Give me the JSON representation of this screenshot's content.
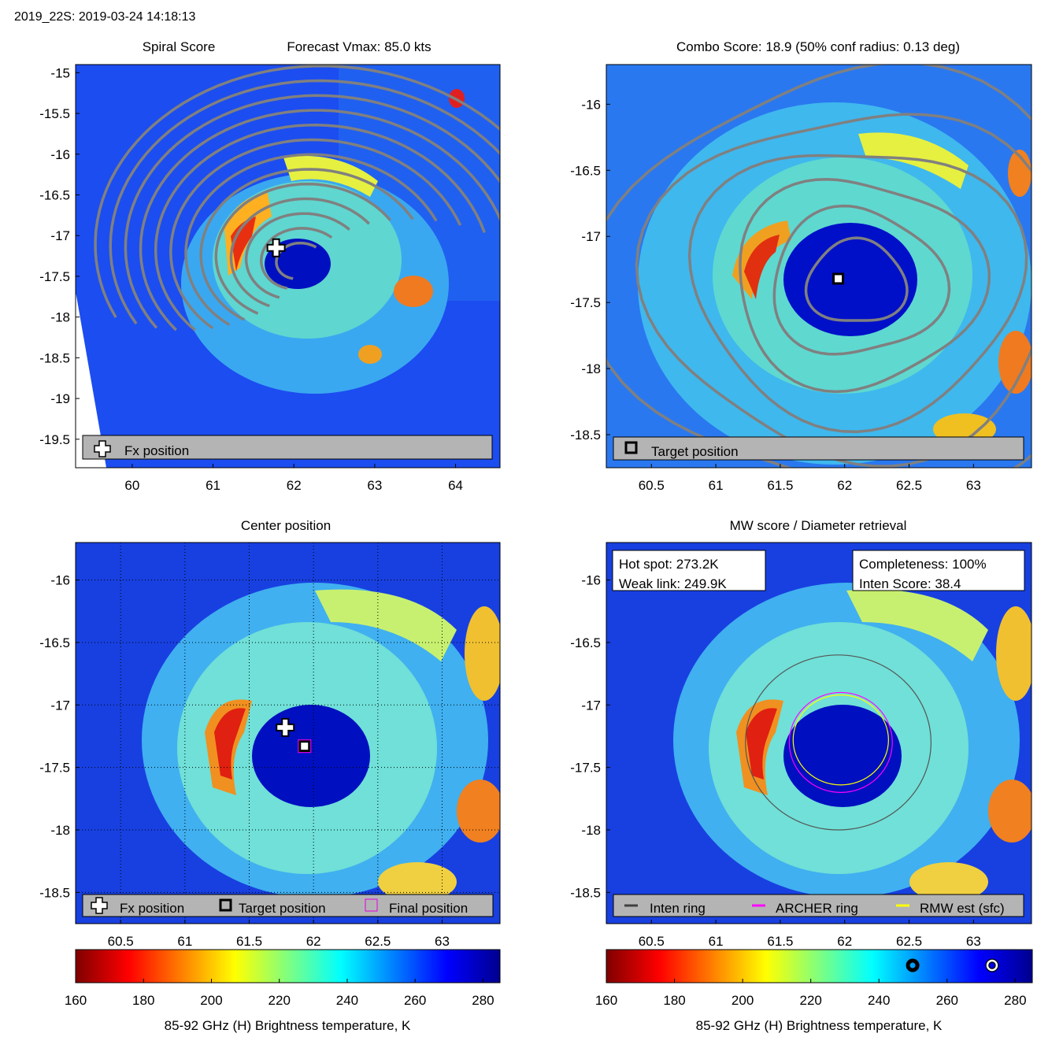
{
  "header": {
    "storm_time": "2019_22S: 2019-03-24 14:18:13"
  },
  "chart_data": [
    {
      "type": "heatmap",
      "panel": "spiral-score",
      "title": "Spiral Score",
      "subtitle": "Forecast Vmax: 85.0 kts",
      "xlim": [
        59.3,
        64.55
      ],
      "ylim": [
        -19.85,
        -14.9
      ],
      "xticks": [
        60,
        61,
        62,
        63,
        64
      ],
      "yticks": [
        -15,
        -15.5,
        -16,
        -16.5,
        -17,
        -17.5,
        -18,
        -18.5,
        -19,
        -19.5
      ],
      "markers": [
        {
          "kind": "fx-position",
          "lon": 61.78,
          "lat": -17.15
        }
      ],
      "spiral_center": {
        "lon": 62.05,
        "lat": -17.35
      },
      "legend": [
        {
          "symbol": "white-cross",
          "label": "Fx position"
        }
      ]
    },
    {
      "type": "heatmap",
      "panel": "combo-score",
      "title": "Combo Score: 18.9  (50% conf radius: 0.13 deg)",
      "xlim": [
        60.15,
        63.45
      ],
      "ylim": [
        -18.75,
        -15.7
      ],
      "xticks": [
        60.5,
        61,
        61.5,
        62,
        62.5,
        63
      ],
      "yticks": [
        -16,
        -16.5,
        -17,
        -17.5,
        -18,
        -18.5
      ],
      "markers": [
        {
          "kind": "target-position",
          "lon": 61.95,
          "lat": -17.32
        }
      ],
      "contour_center": {
        "lon": 62.0,
        "lat": -17.35
      },
      "legend": [
        {
          "symbol": "black-square",
          "label": "Target position"
        }
      ]
    },
    {
      "type": "heatmap",
      "panel": "center-position",
      "title": "Center position",
      "xlim": [
        60.15,
        63.45
      ],
      "ylim": [
        -18.75,
        -15.7
      ],
      "xticks": [
        60.5,
        61,
        61.5,
        62,
        62.5,
        63
      ],
      "yticks": [
        -16,
        -16.5,
        -17,
        -17.5,
        -18,
        -18.5
      ],
      "grid": true,
      "markers": [
        {
          "kind": "fx-position",
          "lon": 61.78,
          "lat": -17.18
        },
        {
          "kind": "target-position",
          "lon": 61.93,
          "lat": -17.33
        },
        {
          "kind": "final-position",
          "lon": 61.93,
          "lat": -17.33
        }
      ],
      "legend": [
        {
          "symbol": "white-cross",
          "label": "Fx position"
        },
        {
          "symbol": "black-square",
          "label": "Target position"
        },
        {
          "symbol": "magenta-square",
          "label": "Final position"
        }
      ]
    },
    {
      "type": "heatmap",
      "panel": "mw-score",
      "title": "MW score / Diameter retrieval",
      "xlim": [
        60.15,
        63.45
      ],
      "ylim": [
        -18.75,
        -15.7
      ],
      "xticks": [
        60.5,
        61,
        61.5,
        62,
        62.5,
        63
      ],
      "yticks": [
        -16,
        -16.5,
        -17,
        -17.5,
        -18,
        -18.5
      ],
      "info_left": [
        "Hot spot: 273.2K",
        "Weak link: 249.9K"
      ],
      "info_right": [
        "Completeness: 100%",
        "Inten Score: 38.4"
      ],
      "rings": [
        {
          "name": "Inten ring",
          "color": "#555555",
          "lon": 61.95,
          "lat": -17.3,
          "r_lon": 0.72,
          "r_lat": 0.7
        },
        {
          "name": "ARCHER ring",
          "color": "#ff00ff",
          "lon": 61.97,
          "lat": -17.3,
          "r_lon": 0.4,
          "r_lat": 0.4
        },
        {
          "name": "RMW est (sfc)",
          "color": "#ffff00",
          "lon": 61.97,
          "lat": -17.28,
          "r_lon": 0.37,
          "r_lat": 0.36
        }
      ],
      "legend": [
        {
          "symbol": "gray-line",
          "label": "Inten ring"
        },
        {
          "symbol": "magenta-line",
          "label": "ARCHER ring"
        },
        {
          "symbol": "yellow-line",
          "label": "RMW est (sfc)"
        }
      ]
    },
    {
      "type": "colorbar",
      "label": "85-92 GHz (H) Brightness temperature, K",
      "range": [
        160,
        285
      ],
      "ticks": [
        160,
        180,
        200,
        220,
        240,
        260,
        280
      ],
      "colormap": [
        "#800000",
        "#ff0000",
        "#ffff00",
        "#00ffff",
        "#0000ff",
        "#00008f"
      ],
      "colormap_stops": [
        0,
        0.125,
        0.375,
        0.625,
        0.875,
        1
      ],
      "indicators_on_right_bar": [
        {
          "kind": "weak-link",
          "value": 249.9
        },
        {
          "kind": "hot-spot",
          "value": 273.2
        }
      ]
    }
  ]
}
